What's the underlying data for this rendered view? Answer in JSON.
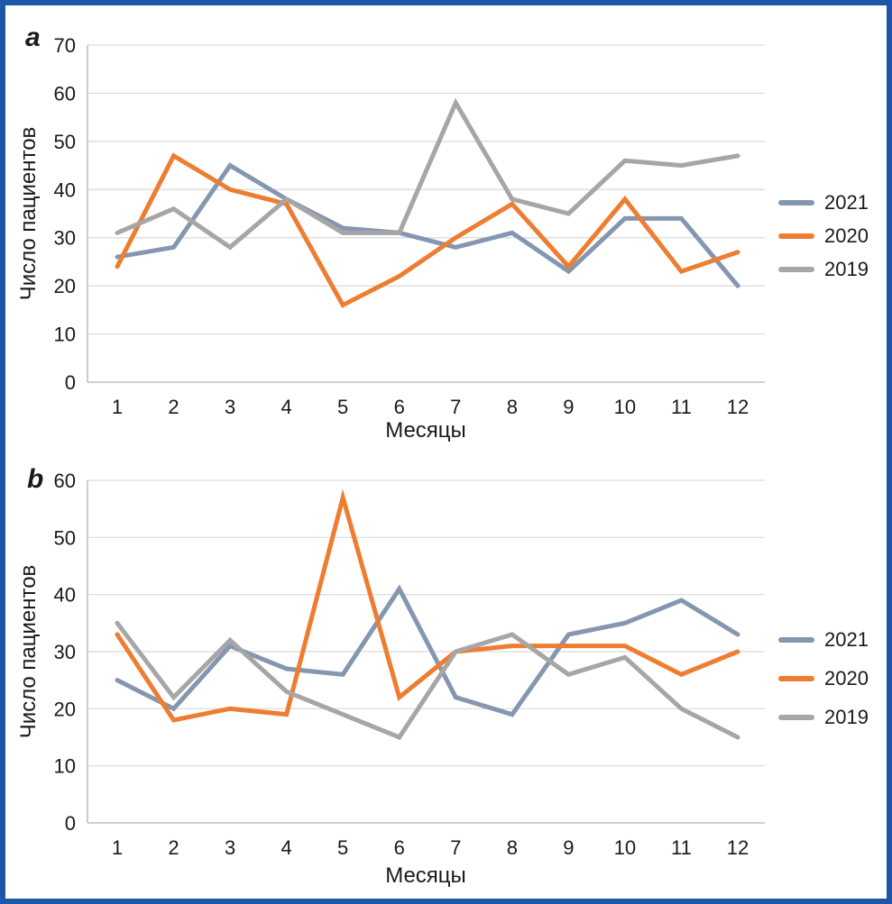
{
  "frame": {
    "border_color": "#1e56a8",
    "background": "#ffffff"
  },
  "chart_data": [
    {
      "panel_label": "a",
      "type": "line",
      "title": "",
      "xlabel": "Месяцы",
      "ylabel": "Число пациентов",
      "ylim": [
        0,
        70
      ],
      "ytick_step": 10,
      "grid": true,
      "legend_position": "right",
      "categories": [
        "1",
        "2",
        "3",
        "4",
        "5",
        "6",
        "7",
        "8",
        "9",
        "10",
        "11",
        "12"
      ],
      "series": [
        {
          "name": "2021",
          "color": "#8496B0",
          "values": [
            26,
            28,
            45,
            38,
            32,
            31,
            28,
            31,
            23,
            34,
            34,
            20
          ]
        },
        {
          "name": "2020",
          "color": "#ED7D31",
          "values": [
            24,
            47,
            40,
            37,
            16,
            22,
            30,
            37,
            24,
            38,
            23,
            27
          ]
        },
        {
          "name": "2019",
          "color": "#A6A6A6",
          "values": [
            31,
            36,
            28,
            38,
            31,
            31,
            58,
            38,
            35,
            46,
            45,
            47
          ]
        }
      ]
    },
    {
      "panel_label": "b",
      "type": "line",
      "title": "",
      "xlabel": "Месяцы",
      "ylabel": "Число пациентов",
      "ylim": [
        0,
        60
      ],
      "ytick_step": 10,
      "grid": true,
      "legend_position": "right",
      "categories": [
        "1",
        "2",
        "3",
        "4",
        "5",
        "6",
        "7",
        "8",
        "9",
        "10",
        "11",
        "12"
      ],
      "series": [
        {
          "name": "2021",
          "color": "#8496B0",
          "values": [
            25,
            20,
            31,
            27,
            26,
            41,
            22,
            19,
            33,
            35,
            39,
            33
          ]
        },
        {
          "name": "2020",
          "color": "#ED7D31",
          "values": [
            33,
            18,
            20,
            19,
            57,
            22,
            30,
            31,
            31,
            31,
            26,
            30
          ]
        },
        {
          "name": "2019",
          "color": "#A6A6A6",
          "values": [
            35,
            22,
            32,
            23,
            19,
            15,
            30,
            33,
            26,
            29,
            20,
            15
          ]
        }
      ]
    }
  ]
}
